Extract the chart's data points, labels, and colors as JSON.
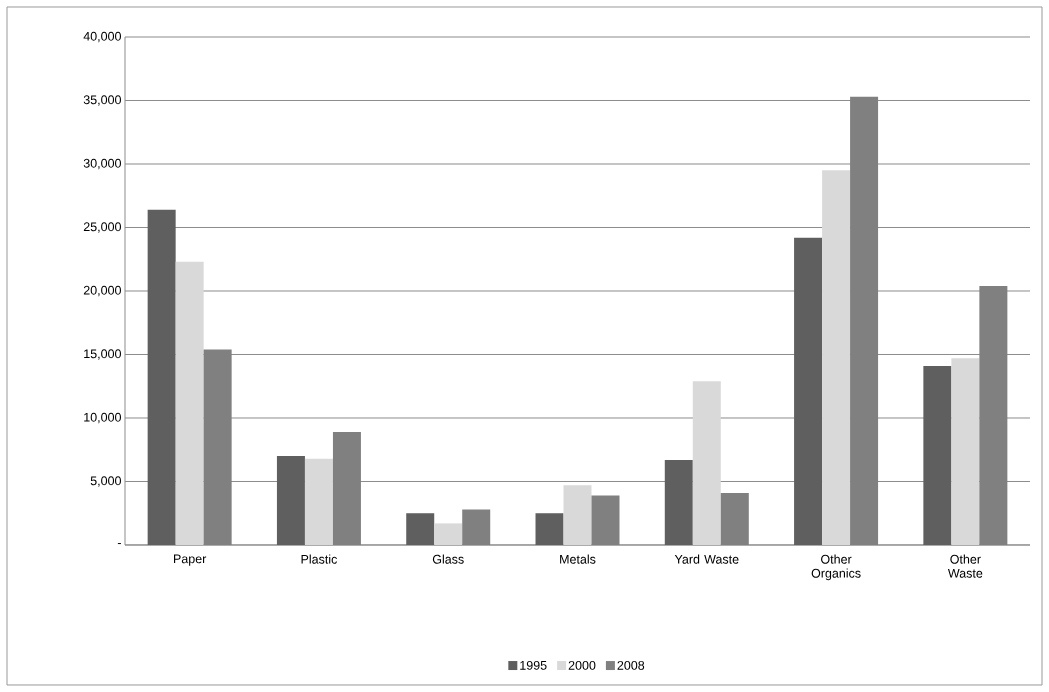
{
  "chart_data": {
    "type": "bar",
    "categories": [
      "Paper",
      "Plastic",
      "Glass",
      "Metals",
      "Yard Waste",
      "Other Organics",
      "Other Waste"
    ],
    "series": [
      {
        "name": "1995",
        "color": "#5f5f5f",
        "values": [
          26400,
          7000,
          2500,
          2500,
          6700,
          24200,
          14100
        ]
      },
      {
        "name": "2000",
        "color": "#d9d9d9",
        "values": [
          22300,
          6800,
          1700,
          4700,
          12900,
          29500,
          14700
        ]
      },
      {
        "name": "2008",
        "color": "#808080",
        "values": [
          15400,
          8900,
          2800,
          3900,
          4100,
          35300,
          20400
        ]
      }
    ],
    "ylim": [
      0,
      40000
    ],
    "yticks": [
      {
        "value": 0,
        "label": "-"
      },
      {
        "value": 5000,
        "label": "5,000"
      },
      {
        "value": 10000,
        "label": "10,000"
      },
      {
        "value": 15000,
        "label": "15,000"
      },
      {
        "value": 20000,
        "label": "20,000"
      },
      {
        "value": 25000,
        "label": "25,000"
      },
      {
        "value": 30000,
        "label": "30,000"
      },
      {
        "value": 35000,
        "label": "35,000"
      },
      {
        "value": 40000,
        "label": "40,000"
      }
    ],
    "grid": "y",
    "legend": "bottom"
  }
}
